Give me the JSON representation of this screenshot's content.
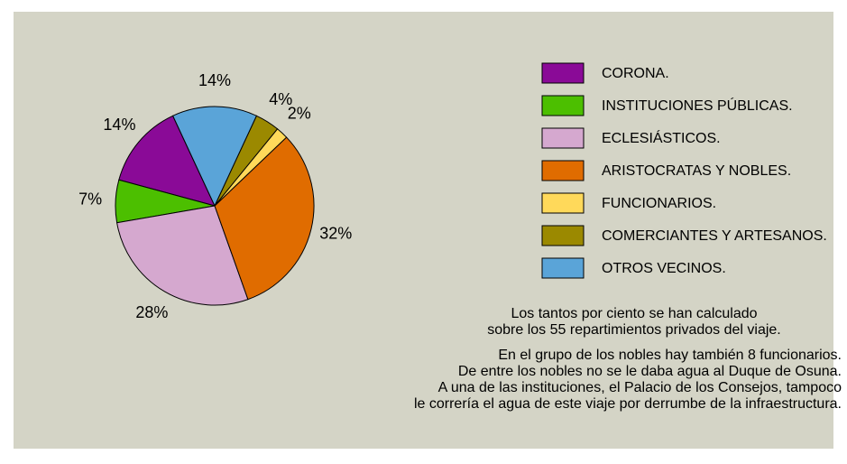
{
  "chart_data": {
    "type": "pie",
    "categories": [
      "CORONA.",
      "INSTITUCIONES PÚBLICAS.",
      "ECLESIÁSTICOS.",
      "ARISTOCRATAS Y NOBLES.",
      "FUNCIONARIOS.",
      "COMERCIANTES Y ARTESANOS.",
      "OTROS VECINOS."
    ],
    "values": [
      14,
      7,
      28,
      32,
      2,
      4,
      14
    ],
    "value_labels": [
      "14%",
      "7%",
      "28%",
      "32%",
      "2%",
      "4%",
      "14%"
    ],
    "colors": [
      "#8a0a97",
      "#4cbf00",
      "#d5a8cf",
      "#e06c00",
      "#ffd95a",
      "#9b8900",
      "#5aa4d8"
    ],
    "legend": "right",
    "notes": [
      [
        "Los tantos por ciento se han calculado",
        "sobre los 55 repartimientos privados del viaje."
      ],
      [
        "En el grupo de los nobles hay también 8 funcionarios.",
        "De entre los nobles no se le daba agua al Duque de Osuna.",
        "A una de las instituciones, el Palacio de los Consejos, tampoco",
        "le correría el agua de este viaje por derrumbe de la infraestructura."
      ]
    ]
  }
}
